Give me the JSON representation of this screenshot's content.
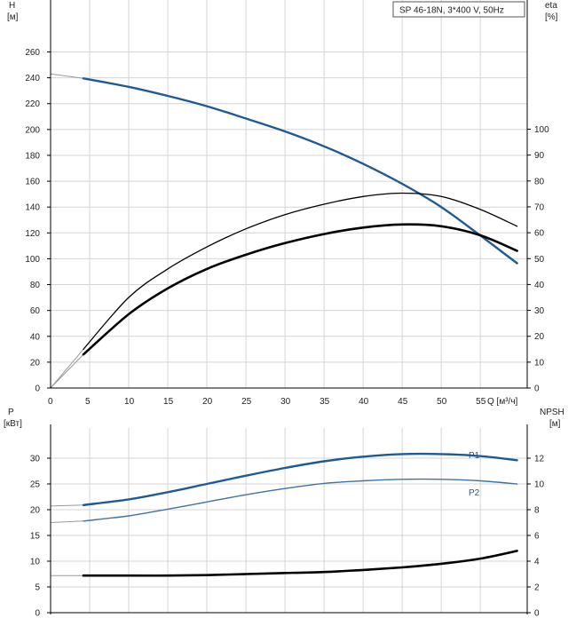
{
  "chart_data": [
    {
      "type": "line",
      "title": "SP 46-18N, 3*400 V, 50Hz",
      "y_left": {
        "label_line1": "H",
        "label_line2": "[м]",
        "range": [
          0,
          270
        ],
        "ticks": [
          0,
          20,
          40,
          60,
          80,
          100,
          120,
          140,
          160,
          180,
          200,
          220,
          240,
          260
        ]
      },
      "y_right": {
        "label_line1": "eta",
        "label_line2": "[%]",
        "range": [
          0,
          135
        ],
        "ticks": [
          0,
          10,
          20,
          30,
          40,
          50,
          60,
          70,
          80,
          90,
          100
        ]
      },
      "x": {
        "label": "Q [м³/ч]",
        "range": [
          0,
          60
        ],
        "ticks": [
          0,
          5,
          10,
          15,
          20,
          25,
          30,
          35,
          40,
          45,
          50,
          55
        ]
      },
      "grid": true,
      "series": [
        {
          "axis": "left",
          "color": "#1f5a96",
          "thin_x": [
            0,
            4.2
          ],
          "thin_y": [
            243,
            239.5
          ],
          "x": [
            4.2,
            10,
            15,
            20,
            25,
            30,
            35,
            40,
            45,
            50,
            55,
            59.7
          ],
          "y": [
            239.5,
            233,
            226,
            218,
            208.5,
            198.5,
            187,
            173.5,
            158,
            140,
            118,
            96.5
          ]
        },
        {
          "axis": "right",
          "color": "#000000",
          "width": 1.3,
          "thin_x": [
            0,
            4.2
          ],
          "thin_y": [
            0,
            15
          ],
          "x": [
            4.2,
            10,
            15,
            20,
            25,
            30,
            35,
            40,
            45,
            50,
            55,
            59.7
          ],
          "y": [
            15,
            35,
            46,
            54.5,
            61.5,
            67,
            71,
            74,
            75.3,
            74,
            69,
            62.5
          ]
        },
        {
          "axis": "right",
          "color": "#000000",
          "width": 2.6,
          "thin_x": [
            0,
            4.2
          ],
          "thin_y": [
            0,
            13
          ],
          "x": [
            4.2,
            10,
            15,
            20,
            25,
            30,
            35,
            40,
            45,
            50,
            55,
            59.7
          ],
          "y": [
            13,
            28.5,
            38.5,
            46,
            51.5,
            56,
            59.5,
            62,
            63.2,
            62.5,
            59,
            53
          ]
        }
      ]
    },
    {
      "type": "line",
      "y_left": {
        "label_line1": "P",
        "label_line2": "[кВт]",
        "range": [
          0,
          35
        ],
        "ticks": [
          0,
          5,
          10,
          15,
          20,
          25,
          30
        ]
      },
      "y_right": {
        "label_line1": "NPSH",
        "label_line2": "[м]",
        "range": [
          0,
          14
        ],
        "ticks": [
          0,
          2,
          4,
          6,
          8,
          10,
          12
        ]
      },
      "x": {
        "range": [
          0,
          60
        ],
        "ticks": [
          0,
          5,
          10,
          15,
          20,
          25,
          30,
          35,
          40,
          45,
          50,
          55
        ]
      },
      "grid": true,
      "series": [
        {
          "name": "P1",
          "axis": "left",
          "color": "#1f5a96",
          "width": 2.4,
          "thin_x": [
            0,
            4.2
          ],
          "thin_y": [
            20.7,
            20.9
          ],
          "x": [
            4.2,
            10,
            15,
            20,
            25,
            30,
            35,
            40,
            45,
            50,
            55,
            59.7
          ],
          "y": [
            20.9,
            22,
            23.4,
            25,
            26.6,
            28.1,
            29.4,
            30.3,
            30.8,
            30.8,
            30.4,
            29.6
          ]
        },
        {
          "name": "P2",
          "axis": "left",
          "color": "#3f72a8",
          "width": 1.4,
          "thin_x": [
            0,
            4.2
          ],
          "thin_y": [
            17.5,
            17.8
          ],
          "x": [
            4.2,
            10,
            15,
            20,
            25,
            30,
            35,
            40,
            45,
            50,
            55,
            59.7
          ],
          "y": [
            17.8,
            18.8,
            20.1,
            21.5,
            22.9,
            24.1,
            25.1,
            25.6,
            25.9,
            25.9,
            25.6,
            25.0
          ]
        },
        {
          "name": "",
          "axis": "left",
          "color": "#000000",
          "width": 2.6,
          "thin_x": [
            0,
            4.2
          ],
          "thin_y": [
            7.2,
            7.2
          ],
          "x": [
            4.2,
            10,
            15,
            20,
            25,
            30,
            35,
            40,
            45,
            50,
            55,
            59.7
          ],
          "y": [
            7.2,
            7.2,
            7.2,
            7.3,
            7.5,
            7.7,
            7.9,
            8.3,
            8.8,
            9.5,
            10.5,
            12.0
          ]
        }
      ]
    }
  ]
}
